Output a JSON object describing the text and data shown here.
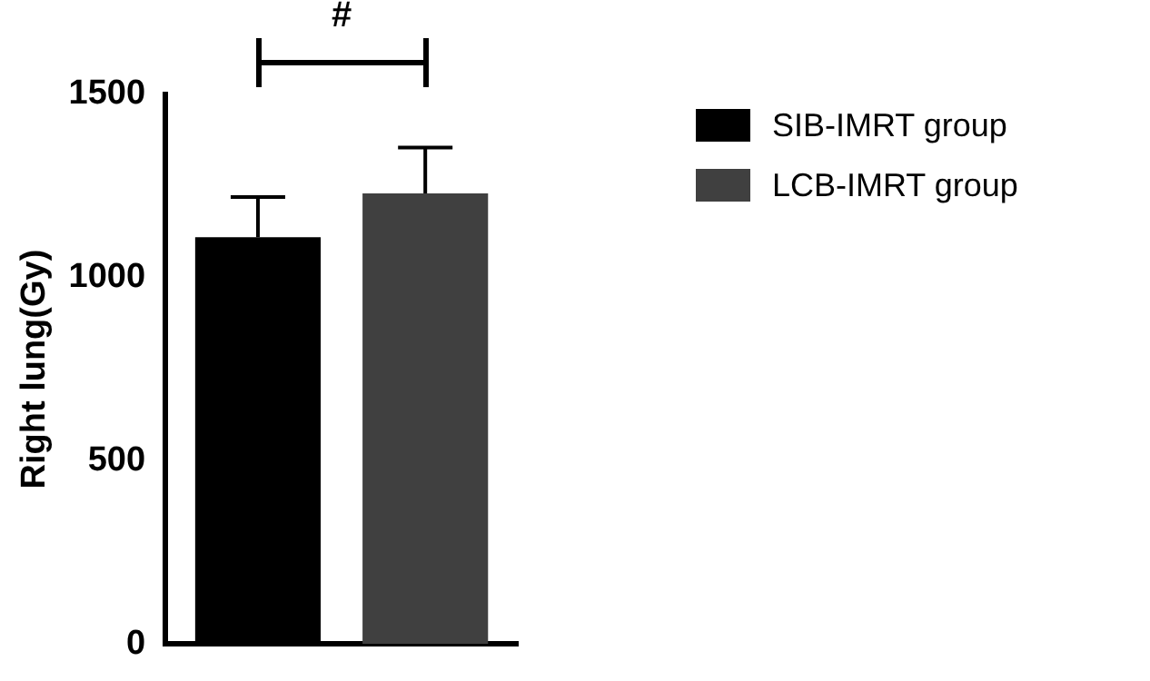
{
  "chart_data": {
    "type": "bar",
    "ylabel": "Right lung(Gy)",
    "categories": [
      null
    ],
    "series": [
      {
        "name": "SIB-IMRT group",
        "color": "#000000",
        "values": [
          1110
        ],
        "errors": [
          110
        ]
      },
      {
        "name": "LCB-IMRT group",
        "color": "#404040",
        "values": [
          1230
        ],
        "errors": [
          125
        ]
      }
    ],
    "ylim": [
      0,
      1500
    ],
    "yticks": [
      0,
      500,
      1000,
      1500
    ],
    "grid": false,
    "legend": "top right",
    "annotations": [
      "#"
    ]
  }
}
